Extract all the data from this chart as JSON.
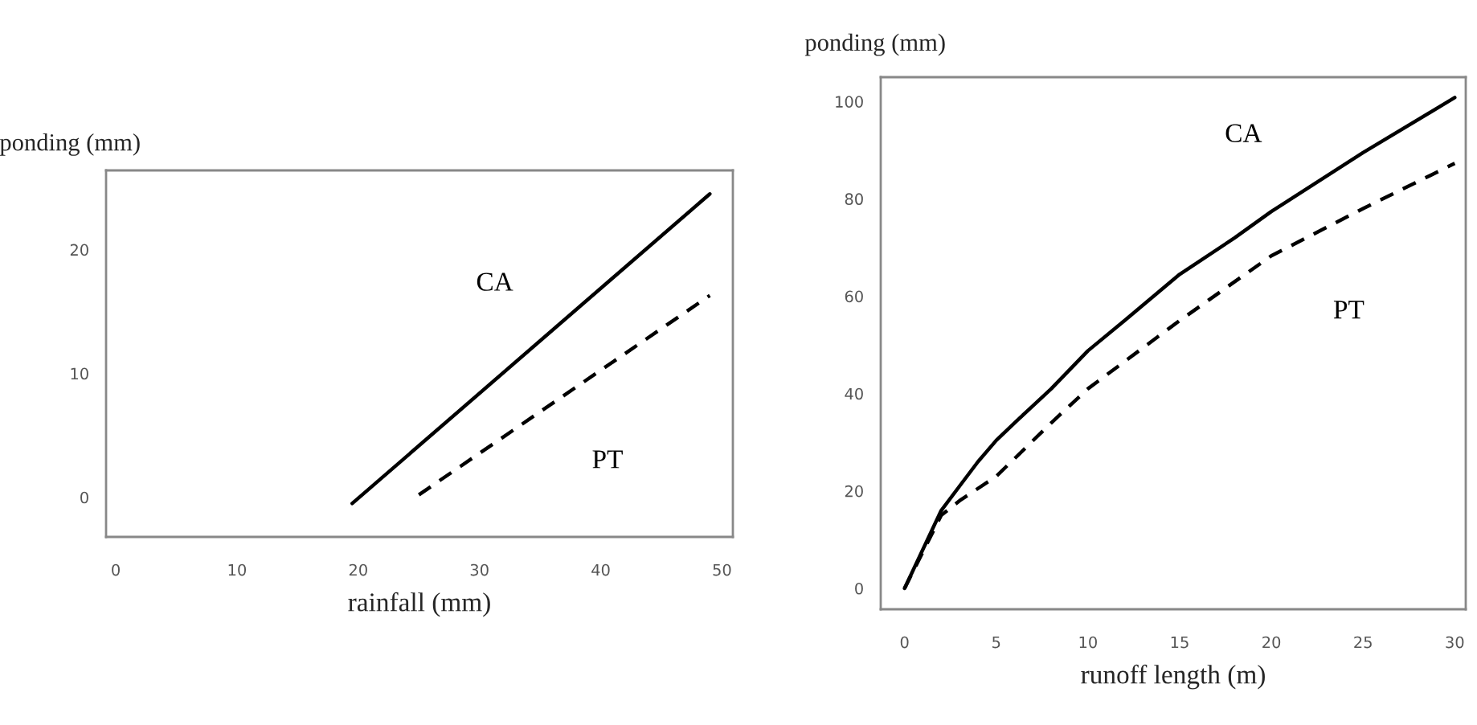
{
  "chart_data": [
    {
      "type": "line",
      "xlabel": "rainfall (mm)",
      "ylabel": "ponding (mm)",
      "xlim": [
        -0.8,
        50.9
      ],
      "ylim": [
        -3.2,
        26.4
      ],
      "xticks": [
        0,
        10,
        20,
        30,
        40,
        50
      ],
      "yticks": [
        0,
        10,
        20
      ],
      "grid": false,
      "series": [
        {
          "name": "CA",
          "color": "#000000",
          "line_style": "solid",
          "x": [
            19.5,
            49
          ],
          "values": [
            -0.5,
            24.5
          ]
        },
        {
          "name": "PT",
          "color": "#000000",
          "line_style": "dashed",
          "x": [
            25,
            49
          ],
          "values": [
            0.2,
            16.3
          ]
        }
      ]
    },
    {
      "type": "line",
      "xlabel": "runoff length (m)",
      "ylabel": "ponding (mm)",
      "xlim": [
        -1.3,
        30.6
      ],
      "ylim": [
        -4.3,
        105
      ],
      "xticks": [
        0,
        5,
        10,
        15,
        20,
        25,
        30
      ],
      "yticks": [
        0,
        20,
        40,
        60,
        80,
        100
      ],
      "grid": false,
      "series": [
        {
          "name": "CA",
          "color": "#000000",
          "line_style": "solid",
          "x": [
            0,
            1,
            2,
            3,
            4,
            5,
            6,
            8,
            10,
            12,
            15,
            18,
            20,
            25,
            30
          ],
          "values": [
            0,
            8,
            16,
            21,
            26,
            30.4,
            34,
            41,
            48.8,
            55,
            64.5,
            72,
            77.4,
            89.5,
            100.8
          ]
        },
        {
          "name": "PT",
          "color": "#000000",
          "line_style": "dashed",
          "x": [
            0,
            1,
            2,
            3,
            5,
            8,
            10,
            15,
            20,
            25,
            30
          ],
          "values": [
            0,
            7.5,
            15,
            18,
            23,
            34,
            41,
            55,
            68.3,
            78,
            87.3
          ]
        }
      ]
    }
  ]
}
